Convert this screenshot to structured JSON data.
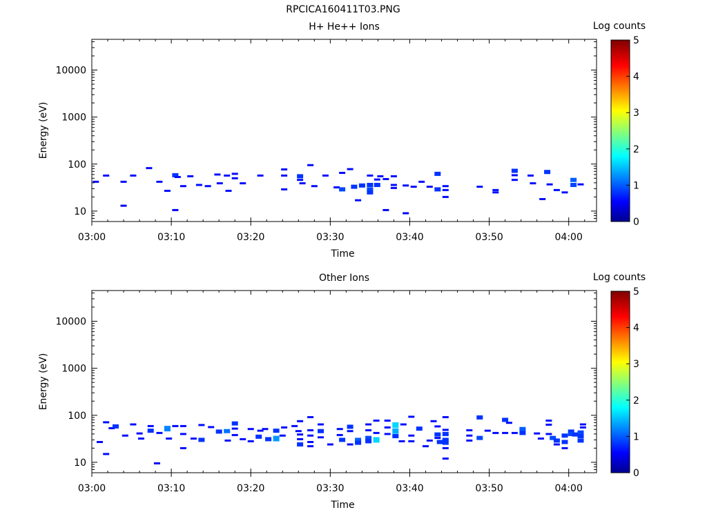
{
  "title": "RPCICA160411T03.PNG",
  "chart_data": [
    {
      "type": "heatmap",
      "title": "H+ He++ Ions",
      "xlabel": "Time",
      "ylabel": "Energy (eV)",
      "x_ticks": [
        "03:00",
        "03:10",
        "03:20",
        "03:30",
        "03:40",
        "03:50",
        "04:00"
      ],
      "x_range_minutes": [
        0,
        63.5
      ],
      "y_scale": "log",
      "y_ticks": [
        "10",
        "100",
        "1000",
        "10000"
      ],
      "ylim": [
        6,
        45000
      ],
      "colorbar": {
        "label": "Log counts",
        "ticks": [
          "0",
          "1",
          "2",
          "3",
          "4",
          "5"
        ],
        "range": [
          0,
          5
        ]
      },
      "points": [
        {
          "t": 0.5,
          "e": 42,
          "v": 0.6
        },
        {
          "t": 1.8,
          "e": 57,
          "v": 0.6
        },
        {
          "t": 4,
          "e": 42,
          "v": 0.6
        },
        {
          "t": 4,
          "e": 13,
          "v": 0.5
        },
        {
          "t": 5.2,
          "e": 57,
          "v": 0.6
        },
        {
          "t": 7.2,
          "e": 82,
          "v": 0.6
        },
        {
          "t": 8.5,
          "e": 42,
          "v": 0.6
        },
        {
          "t": 9.5,
          "e": 27,
          "v": 0.6
        },
        {
          "t": 10.5,
          "e": 58,
          "v": 0.8
        },
        {
          "t": 10.5,
          "e": 10.5,
          "v": 0.5
        },
        {
          "t": 10.8,
          "e": 53,
          "v": 0.6
        },
        {
          "t": 11.5,
          "e": 34,
          "v": 0.6
        },
        {
          "t": 12.4,
          "e": 55,
          "v": 0.6
        },
        {
          "t": 13.5,
          "e": 36,
          "v": 0.6
        },
        {
          "t": 14.6,
          "e": 34,
          "v": 0.6
        },
        {
          "t": 15.8,
          "e": 60,
          "v": 0.6
        },
        {
          "t": 16.1,
          "e": 39,
          "v": 0.6
        },
        {
          "t": 17,
          "e": 57,
          "v": 0.6
        },
        {
          "t": 17.2,
          "e": 27,
          "v": 0.6
        },
        {
          "t": 18,
          "e": 62,
          "v": 0.6
        },
        {
          "t": 18,
          "e": 50,
          "v": 0.6
        },
        {
          "t": 19,
          "e": 39,
          "v": 0.6
        },
        {
          "t": 21.2,
          "e": 57,
          "v": 0.6
        },
        {
          "t": 24.2,
          "e": 77,
          "v": 0.6
        },
        {
          "t": 24.2,
          "e": 57,
          "v": 0.6
        },
        {
          "t": 24.2,
          "e": 29,
          "v": 0.6
        },
        {
          "t": 26.2,
          "e": 55,
          "v": 0.8
        },
        {
          "t": 26.2,
          "e": 46,
          "v": 0.6
        },
        {
          "t": 26.5,
          "e": 39,
          "v": 0.6
        },
        {
          "t": 27.5,
          "e": 95,
          "v": 0.6
        },
        {
          "t": 28,
          "e": 34,
          "v": 0.6
        },
        {
          "t": 29.4,
          "e": 57,
          "v": 0.6
        },
        {
          "t": 30.8,
          "e": 32,
          "v": 0.6
        },
        {
          "t": 31.5,
          "e": 29,
          "v": 0.9
        },
        {
          "t": 31.5,
          "e": 65,
          "v": 0.6
        },
        {
          "t": 32.5,
          "e": 78,
          "v": 0.6
        },
        {
          "t": 33,
          "e": 33,
          "v": 0.8
        },
        {
          "t": 33.5,
          "e": 17,
          "v": 0.6
        },
        {
          "t": 34,
          "e": 35,
          "v": 0.8
        },
        {
          "t": 35,
          "e": 36,
          "v": 0.8
        },
        {
          "t": 35,
          "e": 29,
          "v": 0.9
        },
        {
          "t": 35,
          "e": 25,
          "v": 0.8
        },
        {
          "t": 35,
          "e": 57,
          "v": 0.6
        },
        {
          "t": 35.9,
          "e": 36,
          "v": 0.8
        },
        {
          "t": 35.9,
          "e": 47,
          "v": 0.6
        },
        {
          "t": 36.3,
          "e": 55,
          "v": 0.6
        },
        {
          "t": 37,
          "e": 48,
          "v": 0.6
        },
        {
          "t": 37,
          "e": 10.5,
          "v": 0.5
        },
        {
          "t": 38,
          "e": 55,
          "v": 0.6
        },
        {
          "t": 38,
          "e": 36,
          "v": 0.6
        },
        {
          "t": 38,
          "e": 31,
          "v": 0.6
        },
        {
          "t": 39.5,
          "e": 35,
          "v": 0.6
        },
        {
          "t": 39.5,
          "e": 9,
          "v": 0.5
        },
        {
          "t": 40.5,
          "e": 33,
          "v": 0.6
        },
        {
          "t": 41.5,
          "e": 42,
          "v": 0.6
        },
        {
          "t": 42.5,
          "e": 33,
          "v": 0.6
        },
        {
          "t": 43.5,
          "e": 62,
          "v": 0.8
        },
        {
          "t": 43.5,
          "e": 29,
          "v": 0.8
        },
        {
          "t": 44.5,
          "e": 34,
          "v": 0.6
        },
        {
          "t": 44.5,
          "e": 28,
          "v": 0.6
        },
        {
          "t": 44.5,
          "e": 20,
          "v": 0.6
        },
        {
          "t": 48.8,
          "e": 33,
          "v": 0.6
        },
        {
          "t": 50.8,
          "e": 28,
          "v": 0.6
        },
        {
          "t": 50.8,
          "e": 25,
          "v": 0.6
        },
        {
          "t": 53.2,
          "e": 72,
          "v": 0.8
        },
        {
          "t": 53.2,
          "e": 58,
          "v": 0.6
        },
        {
          "t": 53.2,
          "e": 46,
          "v": 0.6
        },
        {
          "t": 55.2,
          "e": 57,
          "v": 0.6
        },
        {
          "t": 55.5,
          "e": 39,
          "v": 0.6
        },
        {
          "t": 56.7,
          "e": 18,
          "v": 0.6
        },
        {
          "t": 57.3,
          "e": 68,
          "v": 0.8
        },
        {
          "t": 57.6,
          "e": 37,
          "v": 0.6
        },
        {
          "t": 58.5,
          "e": 28,
          "v": 0.6
        },
        {
          "t": 59.5,
          "e": 25,
          "v": 0.6
        },
        {
          "t": 60.6,
          "e": 46,
          "v": 1.0
        },
        {
          "t": 60.6,
          "e": 36,
          "v": 0.9
        },
        {
          "t": 61.5,
          "e": 37,
          "v": 0.6
        }
      ]
    },
    {
      "type": "heatmap",
      "title": "Other Ions",
      "xlabel": "Time",
      "ylabel": "Energy (eV)",
      "x_ticks": [
        "03:00",
        "03:10",
        "03:20",
        "03:30",
        "03:40",
        "03:50",
        "04:00"
      ],
      "x_range_minutes": [
        0,
        63.5
      ],
      "y_scale": "log",
      "y_ticks": [
        "10",
        "100",
        "1000",
        "10000"
      ],
      "ylim": [
        6,
        45000
      ],
      "colorbar": {
        "label": "Log counts",
        "ticks": [
          "0",
          "1",
          "2",
          "3",
          "4",
          "5"
        ],
        "range": [
          0,
          5
        ]
      },
      "points": [
        {
          "t": 1,
          "e": 27,
          "v": 0.6
        },
        {
          "t": 1.8,
          "e": 71,
          "v": 0.6
        },
        {
          "t": 1.8,
          "e": 15,
          "v": 0.6
        },
        {
          "t": 2.5,
          "e": 53,
          "v": 0.6
        },
        {
          "t": 3,
          "e": 58,
          "v": 0.8
        },
        {
          "t": 4.2,
          "e": 37,
          "v": 0.6
        },
        {
          "t": 5.2,
          "e": 64,
          "v": 0.6
        },
        {
          "t": 6,
          "e": 41,
          "v": 0.6
        },
        {
          "t": 6.2,
          "e": 32,
          "v": 0.6
        },
        {
          "t": 7.4,
          "e": 59,
          "v": 0.6
        },
        {
          "t": 7.4,
          "e": 47,
          "v": 0.8
        },
        {
          "t": 8.2,
          "e": 9.5,
          "v": 0.5
        },
        {
          "t": 8.5,
          "e": 42,
          "v": 0.6
        },
        {
          "t": 9.5,
          "e": 52,
          "v": 1.2
        },
        {
          "t": 9.7,
          "e": 32,
          "v": 0.6
        },
        {
          "t": 10.5,
          "e": 59,
          "v": 0.6
        },
        {
          "t": 11.5,
          "e": 59,
          "v": 0.6
        },
        {
          "t": 11.5,
          "e": 40,
          "v": 0.6
        },
        {
          "t": 11.5,
          "e": 20,
          "v": 0.6
        },
        {
          "t": 12.8,
          "e": 32,
          "v": 0.6
        },
        {
          "t": 13.8,
          "e": 30,
          "v": 0.8
        },
        {
          "t": 13.8,
          "e": 62,
          "v": 0.6
        },
        {
          "t": 15,
          "e": 56,
          "v": 0.6
        },
        {
          "t": 16,
          "e": 45,
          "v": 0.8
        },
        {
          "t": 17,
          "e": 46,
          "v": 1.1
        },
        {
          "t": 17.1,
          "e": 29,
          "v": 0.6
        },
        {
          "t": 18,
          "e": 67,
          "v": 0.8
        },
        {
          "t": 18,
          "e": 38,
          "v": 0.6
        },
        {
          "t": 18,
          "e": 52,
          "v": 0.6
        },
        {
          "t": 19,
          "e": 31,
          "v": 0.6
        },
        {
          "t": 20,
          "e": 28,
          "v": 0.6
        },
        {
          "t": 20,
          "e": 51,
          "v": 0.6
        },
        {
          "t": 21,
          "e": 35,
          "v": 0.8
        },
        {
          "t": 21.2,
          "e": 47,
          "v": 0.6
        },
        {
          "t": 21.8,
          "e": 51,
          "v": 0.6
        },
        {
          "t": 22.2,
          "e": 31,
          "v": 0.8
        },
        {
          "t": 23.2,
          "e": 32,
          "v": 1.3
        },
        {
          "t": 23.2,
          "e": 47,
          "v": 0.8
        },
        {
          "t": 24,
          "e": 37,
          "v": 0.6
        },
        {
          "t": 24.2,
          "e": 55,
          "v": 0.6
        },
        {
          "t": 25.5,
          "e": 59,
          "v": 0.6
        },
        {
          "t": 26,
          "e": 46,
          "v": 0.6
        },
        {
          "t": 26.2,
          "e": 75,
          "v": 0.6
        },
        {
          "t": 26.2,
          "e": 39,
          "v": 0.6
        },
        {
          "t": 26.2,
          "e": 31,
          "v": 0.6
        },
        {
          "t": 26.2,
          "e": 24,
          "v": 0.8
        },
        {
          "t": 27.5,
          "e": 91,
          "v": 0.6
        },
        {
          "t": 27.5,
          "e": 48,
          "v": 0.6
        },
        {
          "t": 27.5,
          "e": 37,
          "v": 0.6
        },
        {
          "t": 27.5,
          "e": 27,
          "v": 0.6
        },
        {
          "t": 27.5,
          "e": 22,
          "v": 0.6
        },
        {
          "t": 28.8,
          "e": 64,
          "v": 0.6
        },
        {
          "t": 28.8,
          "e": 46,
          "v": 0.8
        },
        {
          "t": 28.8,
          "e": 34,
          "v": 0.6
        },
        {
          "t": 30,
          "e": 24,
          "v": 0.6
        },
        {
          "t": 31.2,
          "e": 51,
          "v": 0.6
        },
        {
          "t": 31.2,
          "e": 38,
          "v": 0.6
        },
        {
          "t": 31.5,
          "e": 30,
          "v": 0.8
        },
        {
          "t": 32.5,
          "e": 57,
          "v": 0.8
        },
        {
          "t": 32.5,
          "e": 46,
          "v": 0.6
        },
        {
          "t": 32.5,
          "e": 24,
          "v": 0.6
        },
        {
          "t": 33.5,
          "e": 30,
          "v": 1.0
        },
        {
          "t": 33.5,
          "e": 26,
          "v": 0.8
        },
        {
          "t": 34.8,
          "e": 64,
          "v": 0.6
        },
        {
          "t": 34.8,
          "e": 48,
          "v": 0.6
        },
        {
          "t": 34.8,
          "e": 33,
          "v": 0.9
        },
        {
          "t": 34.8,
          "e": 28,
          "v": 0.8
        },
        {
          "t": 35.8,
          "e": 30,
          "v": 1.6
        },
        {
          "t": 35.8,
          "e": 77,
          "v": 0.6
        },
        {
          "t": 35.8,
          "e": 42,
          "v": 0.6
        },
        {
          "t": 37.2,
          "e": 77,
          "v": 0.6
        },
        {
          "t": 37.2,
          "e": 55,
          "v": 0.6
        },
        {
          "t": 37.2,
          "e": 40,
          "v": 0.6
        },
        {
          "t": 38.2,
          "e": 62,
          "v": 1.6
        },
        {
          "t": 38.2,
          "e": 46,
          "v": 1.4
        },
        {
          "t": 38.2,
          "e": 36,
          "v": 0.8
        },
        {
          "t": 39,
          "e": 28,
          "v": 0.6
        },
        {
          "t": 39.2,
          "e": 64,
          "v": 0.6
        },
        {
          "t": 40.2,
          "e": 28,
          "v": 0.6
        },
        {
          "t": 40.2,
          "e": 37,
          "v": 0.6
        },
        {
          "t": 40.2,
          "e": 93,
          "v": 0.6
        },
        {
          "t": 41.2,
          "e": 52,
          "v": 0.8
        },
        {
          "t": 42,
          "e": 22,
          "v": 0.6
        },
        {
          "t": 42.5,
          "e": 29,
          "v": 0.6
        },
        {
          "t": 43,
          "e": 75,
          "v": 0.6
        },
        {
          "t": 43.5,
          "e": 58,
          "v": 0.6
        },
        {
          "t": 43.5,
          "e": 39,
          "v": 0.8
        },
        {
          "t": 43.5,
          "e": 33,
          "v": 0.6
        },
        {
          "t": 43.8,
          "e": 27,
          "v": 0.8
        },
        {
          "t": 44.5,
          "e": 91,
          "v": 0.6
        },
        {
          "t": 44.5,
          "e": 49,
          "v": 0.6
        },
        {
          "t": 44.5,
          "e": 40,
          "v": 0.8
        },
        {
          "t": 44.5,
          "e": 30,
          "v": 0.8
        },
        {
          "t": 44.5,
          "e": 26,
          "v": 0.8
        },
        {
          "t": 44.5,
          "e": 20,
          "v": 0.6
        },
        {
          "t": 44.5,
          "e": 12,
          "v": 0.6
        },
        {
          "t": 47.5,
          "e": 48,
          "v": 0.6
        },
        {
          "t": 47.5,
          "e": 37,
          "v": 0.6
        },
        {
          "t": 47.5,
          "e": 29,
          "v": 0.6
        },
        {
          "t": 48.8,
          "e": 90,
          "v": 0.8
        },
        {
          "t": 48.8,
          "e": 33,
          "v": 0.9
        },
        {
          "t": 49.8,
          "e": 47,
          "v": 0.6
        },
        {
          "t": 50.8,
          "e": 42,
          "v": 0.6
        },
        {
          "t": 52,
          "e": 80,
          "v": 0.8
        },
        {
          "t": 52,
          "e": 42,
          "v": 0.6
        },
        {
          "t": 52.5,
          "e": 69,
          "v": 0.6
        },
        {
          "t": 53.2,
          "e": 42,
          "v": 0.6
        },
        {
          "t": 54.2,
          "e": 51,
          "v": 1.0
        },
        {
          "t": 54.2,
          "e": 42,
          "v": 0.8
        },
        {
          "t": 56,
          "e": 41,
          "v": 0.6
        },
        {
          "t": 56.5,
          "e": 32,
          "v": 0.6
        },
        {
          "t": 57.5,
          "e": 77,
          "v": 0.6
        },
        {
          "t": 57.5,
          "e": 63,
          "v": 0.6
        },
        {
          "t": 57.5,
          "e": 40,
          "v": 0.6
        },
        {
          "t": 58,
          "e": 33,
          "v": 0.9
        },
        {
          "t": 58.5,
          "e": 29,
          "v": 0.8
        },
        {
          "t": 58.5,
          "e": 24,
          "v": 0.6
        },
        {
          "t": 59.5,
          "e": 37,
          "v": 0.8
        },
        {
          "t": 59.5,
          "e": 27,
          "v": 0.8
        },
        {
          "t": 59.5,
          "e": 20,
          "v": 0.6
        },
        {
          "t": 60.3,
          "e": 45,
          "v": 0.8
        },
        {
          "t": 60.3,
          "e": 40,
          "v": 0.9
        },
        {
          "t": 60.8,
          "e": 39,
          "v": 0.8
        },
        {
          "t": 61.5,
          "e": 43,
          "v": 0.9
        },
        {
          "t": 61.5,
          "e": 36,
          "v": 0.8
        },
        {
          "t": 61.5,
          "e": 29,
          "v": 0.8
        },
        {
          "t": 61.8,
          "e": 64,
          "v": 0.6
        },
        {
          "t": 61.8,
          "e": 55,
          "v": 0.6
        }
      ]
    }
  ]
}
